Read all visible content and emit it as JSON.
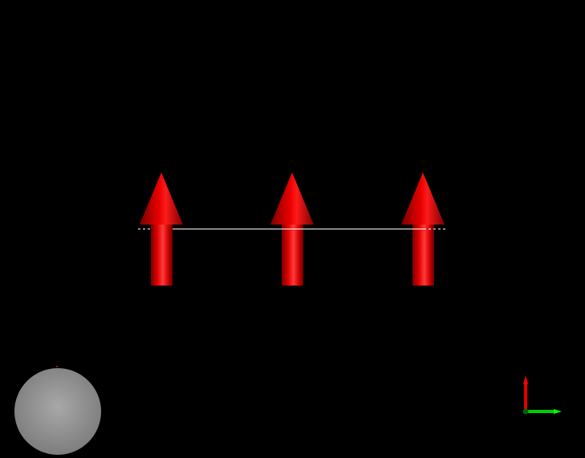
{
  "viewport": {
    "background_color": "#000000"
  },
  "vectors": {
    "arrow_color": "#ff0000",
    "count": 3,
    "direction": "up"
  },
  "reference_line": {
    "color": "#ffffff",
    "style": "solid-with-dashed-ends"
  },
  "navigation_sphere": {
    "color": "#8e8e8e"
  },
  "axis_triad": {
    "vertical_axis_color": "#ff0000",
    "horizontal_axis_color": "#00ff00",
    "origin_color": "#006400"
  }
}
